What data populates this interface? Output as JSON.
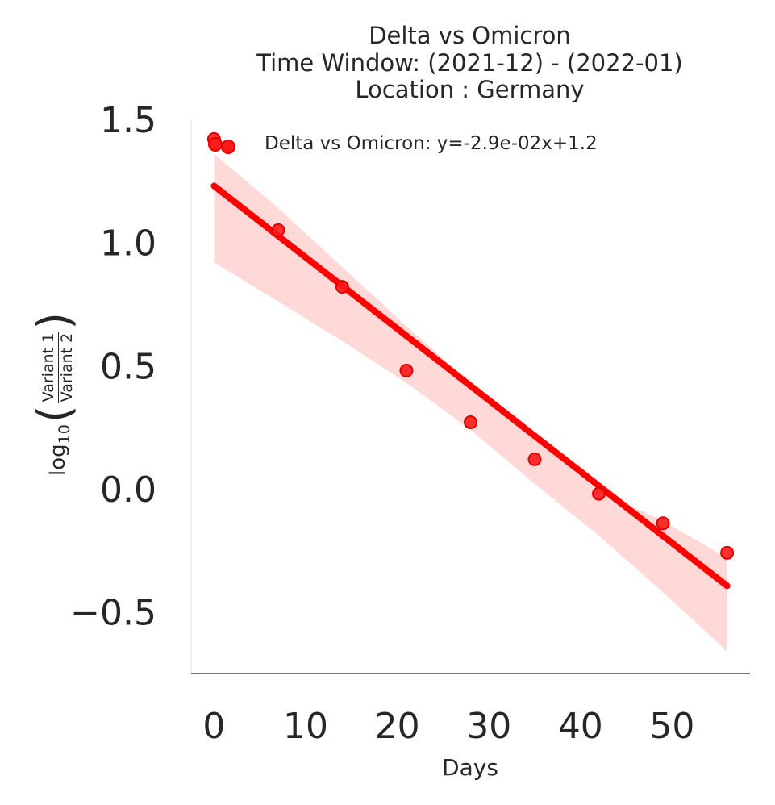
{
  "title_lines": [
    "Delta vs Omicron",
    "Time Window: (2021-12) - (2022-01)",
    "Location : Germany"
  ],
  "legend": {
    "label": "Delta vs Omicron: y=-2.9e-02x+1.2",
    "position": "upper-left"
  },
  "axes": {
    "xlabel": "Days",
    "ylabel": {
      "prefix": "log",
      "subscript": "10",
      "numerator": "Variant 1",
      "denominator": "Variant 2"
    },
    "xticks": [
      "0",
      "10",
      "20",
      "30",
      "40",
      "50"
    ],
    "yticks": [
      "−0.5",
      "0.0",
      "0.5",
      "1.0",
      "1.5"
    ]
  },
  "colors": {
    "points": "#ff1a1a",
    "line": "#ff0000",
    "band": "#ffd6d6",
    "text": "#262626",
    "axis": "#262626"
  },
  "chart_data": {
    "type": "scatter",
    "title": "Delta vs Omicron\nTime Window: (2021-12) - (2022-01)\nLocation : Germany",
    "xlabel": "Days",
    "ylabel": "log10(Variant 1 / Variant 2)",
    "xlim": [
      -2.5,
      58.5
    ],
    "ylim": [
      -0.75,
      1.5
    ],
    "xticks": [
      0,
      10,
      20,
      30,
      40,
      50
    ],
    "yticks": [
      -0.5,
      0.0,
      0.5,
      1.0,
      1.5
    ],
    "grid": false,
    "legend_position": "upper-left",
    "series": [
      {
        "name": "Delta vs Omicron: y=-2.9e-02x+1.2",
        "x": [
          0,
          7,
          14,
          21,
          28,
          35,
          42,
          49,
          56
        ],
        "y": [
          1.42,
          1.05,
          0.82,
          0.48,
          0.27,
          0.12,
          -0.02,
          -0.14,
          -0.26
        ]
      }
    ],
    "regression": {
      "slope": -0.029,
      "intercept": 1.23,
      "x_range": [
        0,
        56
      ],
      "ci_x": [
        0,
        7,
        14,
        21,
        28,
        35,
        42,
        49,
        56
      ],
      "ci_upper": [
        1.36,
        1.14,
        0.9,
        0.66,
        0.43,
        0.2,
        -0.01,
        -0.13,
        -0.28
      ],
      "ci_lower": [
        0.92,
        0.76,
        0.6,
        0.43,
        0.24,
        0.02,
        -0.19,
        -0.42,
        -0.66
      ]
    }
  }
}
